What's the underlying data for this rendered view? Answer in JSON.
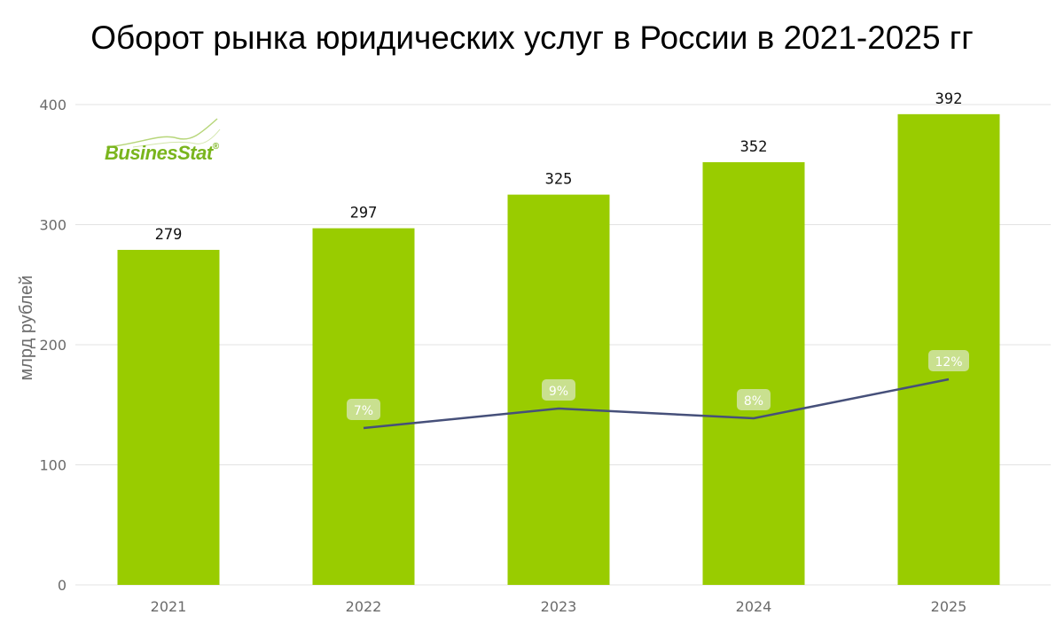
{
  "chart_data": {
    "type": "bar",
    "title": "Оборот рынка юридических услуг в России в 2021-2025 гг",
    "ylabel": "млрд рублей",
    "ylim": [
      0,
      400
    ],
    "yticks": [
      0,
      100,
      200,
      300,
      400
    ],
    "categories": [
      "2021",
      "2022",
      "2023",
      "2024",
      "2025"
    ],
    "series": [
      {
        "values": [
          279,
          297,
          325,
          352,
          392
        ],
        "value_labels": [
          "279",
          "297",
          "325",
          "352",
          "392"
        ],
        "color": "#99cc00"
      }
    ],
    "growth_line": {
      "color": "#46507a",
      "label_bg": "#c9e08f",
      "points": [
        {
          "category": "2022",
          "label": "7%"
        },
        {
          "category": "2023",
          "label": "9%"
        },
        {
          "category": "2024",
          "label": "8%"
        },
        {
          "category": "2025",
          "label": "12%"
        }
      ]
    },
    "grid": true,
    "grid_color": "#e3e3e3"
  },
  "logo": {
    "text": "BusinesStat",
    "mark": "®"
  }
}
